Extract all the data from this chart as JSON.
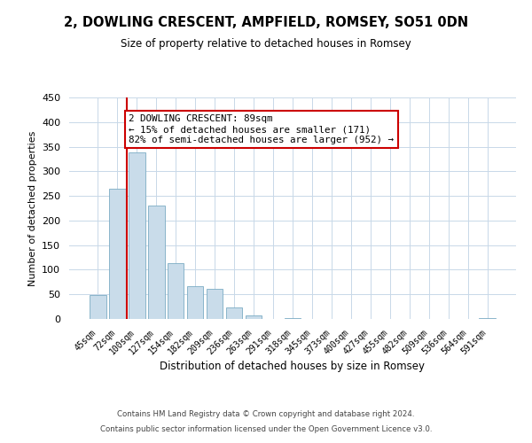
{
  "title": "2, DOWLING CRESCENT, AMPFIELD, ROMSEY, SO51 0DN",
  "subtitle": "Size of property relative to detached houses in Romsey",
  "xlabel": "Distribution of detached houses by size in Romsey",
  "ylabel": "Number of detached properties",
  "bar_labels": [
    "45sqm",
    "72sqm",
    "100sqm",
    "127sqm",
    "154sqm",
    "182sqm",
    "209sqm",
    "236sqm",
    "263sqm",
    "291sqm",
    "318sqm",
    "345sqm",
    "373sqm",
    "400sqm",
    "427sqm",
    "455sqm",
    "482sqm",
    "509sqm",
    "536sqm",
    "564sqm",
    "591sqm"
  ],
  "bar_values": [
    49,
    265,
    338,
    231,
    114,
    67,
    62,
    24,
    7,
    0,
    2,
    0,
    0,
    0,
    0,
    0,
    0,
    0,
    0,
    0,
    2
  ],
  "bar_color": "#c9dcea",
  "bar_edge_color": "#7bacc4",
  "vline_color": "#cc0000",
  "vline_index": 1.5,
  "annotation_text": "2 DOWLING CRESCENT: 89sqm\n← 15% of detached houses are smaller (171)\n82% of semi-detached houses are larger (952) →",
  "annotation_box_facecolor": "#ffffff",
  "annotation_box_edgecolor": "#cc0000",
  "ylim_max": 450,
  "yticks": [
    0,
    50,
    100,
    150,
    200,
    250,
    300,
    350,
    400,
    450
  ],
  "footnote_line1": "Contains HM Land Registry data © Crown copyright and database right 2024.",
  "footnote_line2": "Contains public sector information licensed under the Open Government Licence v3.0.",
  "background_color": "#ffffff",
  "grid_color": "#c8d8e8",
  "title_fontsize": 10.5,
  "subtitle_fontsize": 8.5
}
